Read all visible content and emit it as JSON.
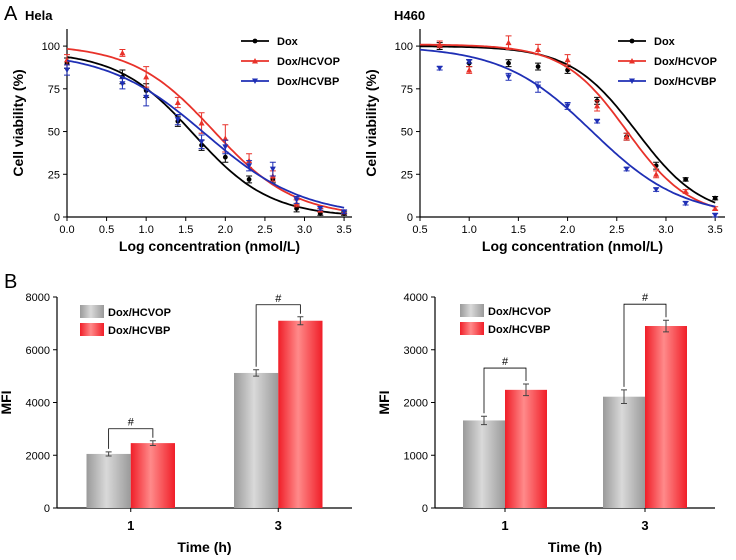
{
  "panel_labels": [
    "A",
    "B"
  ],
  "chart_data": [
    {
      "type": "line",
      "title": "Hela",
      "xlabel": "Log concentration (nmol/L)",
      "ylabel": "Cell viability (%)",
      "xlim": [
        0.0,
        3.6
      ],
      "ylim": [
        0,
        110
      ],
      "xticks": [
        "0.0",
        "0.5",
        "1.0",
        "1.5",
        "2.0",
        "2.5",
        "3.0",
        "3.5"
      ],
      "yticks": [
        "0",
        "25",
        "50",
        "75",
        "100"
      ],
      "legend": [
        "Dox",
        "Dox/HCVOP",
        "Dox/HCVBP"
      ],
      "series": [
        {
          "name": "Dox",
          "color": "#000000",
          "marker": "circle",
          "x": [
            0.0,
            0.7,
            1.0,
            1.4,
            1.7,
            2.0,
            2.3,
            2.6,
            2.9,
            3.2,
            3.5
          ],
          "y": [
            90,
            82,
            74,
            56,
            42,
            35,
            22,
            22,
            5,
            2,
            2
          ],
          "err": [
            3,
            4,
            4,
            3,
            3,
            3,
            2,
            2,
            2,
            1,
            1
          ],
          "fit": {
            "top": 97,
            "bottom": 0,
            "logec50": 1.6,
            "hill": 0.9
          }
        },
        {
          "name": "Dox/HCVOP",
          "color": "#e8322a",
          "marker": "triangle-up",
          "x": [
            0.0,
            0.7,
            1.0,
            1.4,
            1.7,
            2.0,
            2.3,
            2.6,
            2.9,
            3.2,
            3.5
          ],
          "y": [
            92,
            96,
            82,
            67,
            55,
            46,
            33,
            24,
            8,
            4,
            3
          ],
          "err": [
            3,
            2,
            6,
            3,
            6,
            8,
            4,
            3,
            2,
            1,
            1
          ],
          "fit": {
            "top": 101,
            "bottom": 0,
            "logec50": 1.85,
            "hill": 0.85
          }
        },
        {
          "name": "Dox/HCVBP",
          "color": "#1f2fb5",
          "marker": "triangle-down",
          "x": [
            0.0,
            0.7,
            1.0,
            1.4,
            1.7,
            2.0,
            2.3,
            2.6,
            2.9,
            3.2,
            3.5
          ],
          "y": [
            86,
            78,
            70,
            57,
            44,
            41,
            30,
            28,
            10,
            5,
            3
          ],
          "err": [
            3,
            3,
            5,
            3,
            4,
            4,
            3,
            4,
            2,
            1,
            1
          ],
          "fit": {
            "top": 97,
            "bottom": 0,
            "logec50": 1.75,
            "hill": 0.7
          }
        }
      ]
    },
    {
      "type": "line",
      "title": "H460",
      "xlabel": "Log concentration (nmol/L)",
      "ylabel": "Cell viability (%)",
      "xlim": [
        0.5,
        3.6
      ],
      "ylim": [
        0,
        110
      ],
      "xticks": [
        "0.5",
        "1.0",
        "1.5",
        "2.0",
        "2.5",
        "3.0",
        "3.5"
      ],
      "yticks": [
        "0",
        "25",
        "50",
        "75",
        "100"
      ],
      "legend": [
        "Dox",
        "Dox/HCVOP",
        "Dox/HCVBP"
      ],
      "series": [
        {
          "name": "Dox",
          "color": "#000000",
          "marker": "circle",
          "x": [
            0.7,
            1.0,
            1.4,
            1.7,
            2.0,
            2.3,
            2.6,
            2.9,
            3.2,
            3.5
          ],
          "y": [
            100,
            90,
            90,
            88,
            86,
            68,
            47,
            30,
            22,
            11
          ],
          "err": [
            2,
            2,
            2,
            2,
            2,
            2,
            2,
            2,
            1,
            1
          ],
          "fit": {
            "top": 100,
            "bottom": 0,
            "logec50": 2.7,
            "hill": 1.3
          }
        },
        {
          "name": "Dox/HCVOP",
          "color": "#e8322a",
          "marker": "triangle-up",
          "x": [
            0.7,
            1.0,
            1.4,
            1.7,
            2.0,
            2.3,
            2.6,
            2.9,
            3.2,
            3.5
          ],
          "y": [
            101,
            86,
            102,
            98,
            92,
            65,
            47,
            25,
            15,
            5
          ],
          "err": [
            2,
            2,
            4,
            3,
            3,
            3,
            2,
            2,
            1,
            1
          ],
          "fit": {
            "top": 101,
            "bottom": 0,
            "logec50": 2.6,
            "hill": 1.35
          }
        },
        {
          "name": "Dox/HCVBP",
          "color": "#1f2fb5",
          "marker": "triangle-down",
          "x": [
            0.7,
            1.0,
            1.4,
            1.7,
            2.0,
            2.3,
            2.6,
            2.9,
            3.2,
            3.5
          ],
          "y": [
            87,
            91,
            82,
            76,
            65,
            56,
            28,
            16,
            8,
            1
          ],
          "err": [
            1,
            1,
            2,
            3,
            2,
            1,
            1,
            1,
            1,
            1
          ],
          "fit": {
            "top": 100,
            "bottom": 0,
            "logec50": 2.25,
            "hill": 0.95
          }
        }
      ]
    },
    {
      "type": "bar",
      "xlabel": "Time (h)",
      "ylabel": "MFI",
      "ylim": [
        0,
        8000
      ],
      "yticks": [
        "0",
        "2000",
        "4000",
        "6000",
        "8000"
      ],
      "categories": [
        "1",
        "3"
      ],
      "significance": "#",
      "series": [
        {
          "name": "Dox/HCVOP",
          "color": "#9a9a9a",
          "values": [
            2050,
            5120
          ],
          "err": [
            80,
            120
          ]
        },
        {
          "name": "Dox/HCVBP",
          "color": "#f01e28",
          "values": [
            2460,
            7100
          ],
          "err": [
            90,
            150
          ]
        }
      ]
    },
    {
      "type": "bar",
      "xlabel": "Time (h)",
      "ylabel": "MFI",
      "ylim": [
        0,
        4000
      ],
      "yticks": [
        "0",
        "1000",
        "2000",
        "3000",
        "4000"
      ],
      "categories": [
        "1",
        "3"
      ],
      "significance": "#",
      "series": [
        {
          "name": "Dox/HCVOP",
          "color": "#9a9a9a",
          "values": [
            1660,
            2110
          ],
          "err": [
            80,
            130
          ]
        },
        {
          "name": "Dox/HCVBP",
          "color": "#f01e28",
          "values": [
            2240,
            3450
          ],
          "err": [
            110,
            110
          ]
        }
      ]
    }
  ]
}
